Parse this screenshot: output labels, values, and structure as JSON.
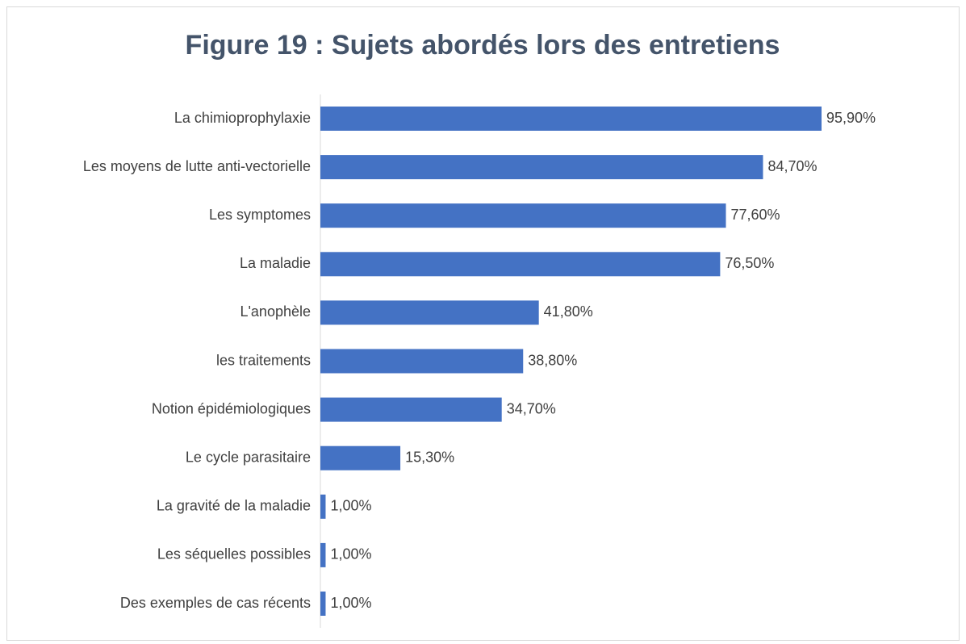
{
  "chart_data": {
    "type": "bar",
    "orientation": "horizontal",
    "title": "Figure 19 : Sujets abordés lors des entretiens",
    "categories": [
      "La chimioprophylaxie",
      "Les moyens de lutte anti-vectorielle",
      "Les symptomes",
      "La maladie",
      "L'anophèle",
      "les traitements",
      "Notion épidémiologiques",
      "Le cycle parasitaire",
      "La gravité de la maladie",
      "Les séquelles possibles",
      "Des exemples de cas récents"
    ],
    "values": [
      95.9,
      84.7,
      77.6,
      76.5,
      41.8,
      38.8,
      34.7,
      15.3,
      1.0,
      1.0,
      1.0
    ],
    "value_labels": [
      "95,90%",
      "84,70%",
      "77,60%",
      "76,50%",
      "41,80%",
      "38,80%",
      "34,70%",
      "15,30%",
      "1,00%",
      "1,00%",
      "1,00%"
    ],
    "color": "#4472c4"
  }
}
